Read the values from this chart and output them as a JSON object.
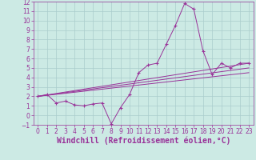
{
  "background_color": "#cceae4",
  "grid_color": "#aacccc",
  "line_color": "#993399",
  "xlabel": "Windchill (Refroidissement éolien,°C)",
  "xlabel_fontsize": 7,
  "xlim": [
    -0.5,
    23.5
  ],
  "ylim": [
    -1,
    12
  ],
  "yticks": [
    -1,
    0,
    1,
    2,
    3,
    4,
    5,
    6,
    7,
    8,
    9,
    10,
    11,
    12
  ],
  "xticks": [
    0,
    1,
    2,
    3,
    4,
    5,
    6,
    7,
    8,
    9,
    10,
    11,
    12,
    13,
    14,
    15,
    16,
    17,
    18,
    19,
    20,
    21,
    22,
    23
  ],
  "series1_x": [
    0,
    1,
    2,
    3,
    4,
    5,
    6,
    7,
    8,
    9,
    10,
    11,
    12,
    13,
    14,
    15,
    16,
    17,
    18,
    19,
    20,
    21,
    22,
    23
  ],
  "series1_y": [
    2.0,
    2.2,
    1.3,
    1.5,
    1.1,
    1.0,
    1.2,
    1.3,
    -0.9,
    0.8,
    2.2,
    4.5,
    5.3,
    5.5,
    7.5,
    9.5,
    11.8,
    11.2,
    6.8,
    4.3,
    5.5,
    5.0,
    5.5,
    5.5
  ],
  "line2_x": [
    0,
    23
  ],
  "line2_y": [
    2.0,
    5.5
  ],
  "line3_x": [
    0,
    23
  ],
  "line3_y": [
    2.0,
    5.0
  ],
  "line4_x": [
    0,
    23
  ],
  "line4_y": [
    2.0,
    4.5
  ],
  "tick_fontsize": 5.5
}
